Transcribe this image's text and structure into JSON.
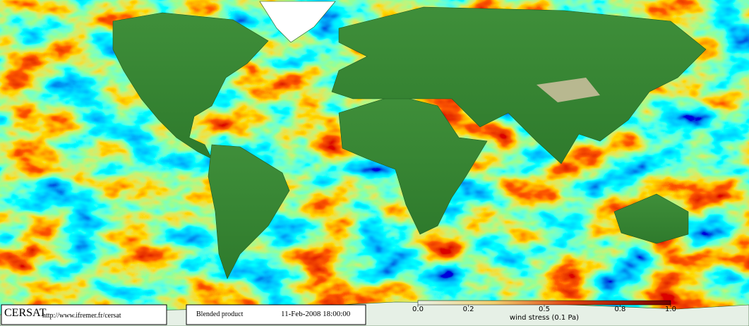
{
  "footer": {
    "logo": "CERSAT",
    "url": "http://www.ifremer.fr/cersat",
    "product": "Blended product",
    "date": "11-Feb-2008 18:00:00"
  },
  "colorbar": {
    "label": "wind stress (0.1 Pa)",
    "range": [
      0,
      1
    ],
    "ticks": [
      {
        "value": 0,
        "label": "0.0"
      },
      0.2,
      0.5,
      0.8,
      {
        "value": 1,
        "label": "1.0"
      }
    ]
  }
}
